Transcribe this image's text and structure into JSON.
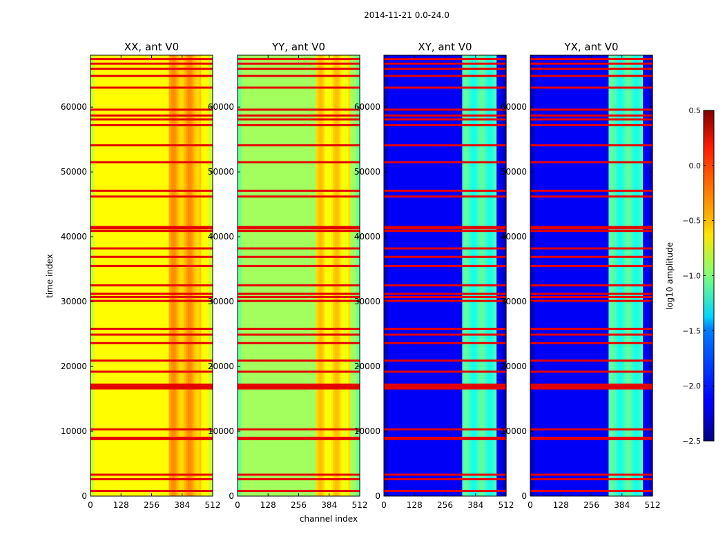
{
  "chart_data": {
    "type": "heatmap",
    "title": "2014-11-21 0.0-24.0",
    "xlabel": "channel index",
    "ylabel": "time index",
    "xlim": [
      0,
      512
    ],
    "ylim": [
      0,
      68000
    ],
    "x_ticks": [
      0,
      128,
      256,
      384,
      512
    ],
    "y_ticks": [
      0,
      10000,
      20000,
      30000,
      40000,
      50000,
      60000
    ],
    "panels": [
      {
        "title": "XX, ant V0",
        "base_level": -0.62,
        "band_level": -0.4,
        "band_range": [
          330,
          460
        ],
        "stripe_level": 0.2
      },
      {
        "title": "YY, ant V0",
        "base_level": -0.9,
        "band_level": -0.55,
        "band_range": [
          330,
          470
        ],
        "stripe_level": 0.2
      },
      {
        "title": "XY, ant V0",
        "base_level": -2.15,
        "band_level": -1.2,
        "band_range": [
          325,
          470
        ],
        "stripe_level": 0.2
      },
      {
        "title": "YX, ant V0",
        "base_level": -2.15,
        "band_level": -1.2,
        "band_range": [
          325,
          470
        ],
        "stripe_level": 0.2
      }
    ],
    "flagged_rows": [
      800,
      2600,
      3300,
      8800,
      9000,
      10300,
      16600,
      16900,
      17200,
      19200,
      20900,
      23600,
      24900,
      25800,
      30100,
      30700,
      31200,
      32500,
      35500,
      36900,
      38200,
      40900,
      41300,
      41500,
      46200,
      47100,
      51500,
      54100,
      57200,
      58100,
      58700,
      59600,
      63000,
      64800,
      65900,
      66700,
      67400
    ],
    "colorbar": {
      "label": "log10 amplitude",
      "range": [
        -2.5,
        0.5
      ],
      "ticks": [
        0.5,
        0.0,
        -0.5,
        -1.0,
        -1.5,
        -2.0,
        -2.5
      ],
      "tick_labels": [
        "0.5",
        "0.0",
        "−0.5",
        "−1.0",
        "−1.5",
        "−2.0",
        "−2.5"
      ],
      "colormap": "jet"
    }
  }
}
